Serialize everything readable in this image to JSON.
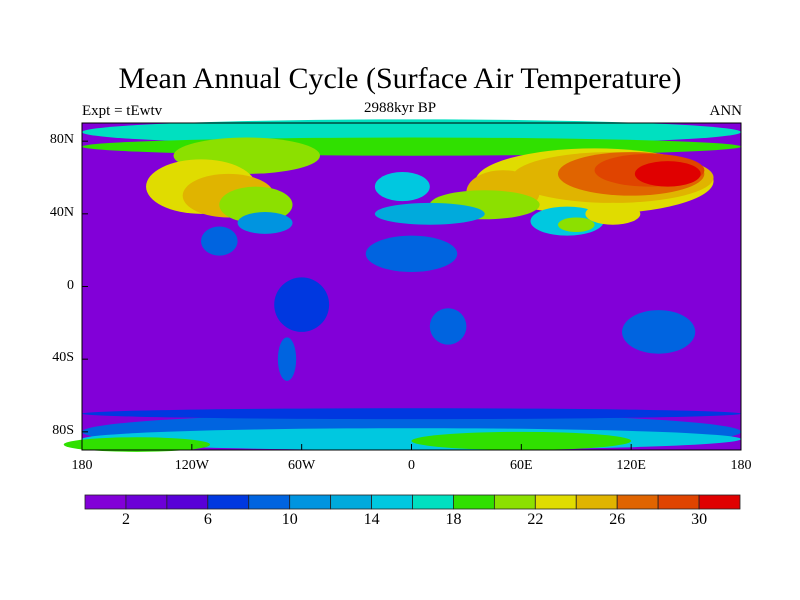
{
  "title": "Mean Annual Cycle (Surface Air Temperature)",
  "left_string": "Expt = tEwtv",
  "center_string": "2988kyr BP",
  "right_string": "ANN",
  "chart_data": {
    "type": "heatmap",
    "title": "Mean Annual Cycle (Surface Air Temperature)",
    "projection": "cylindrical equidistant",
    "lon_range": [
      -180,
      180
    ],
    "lat_range": [
      -90,
      90
    ],
    "x_ticks": [
      {
        "value": -180,
        "label": "180"
      },
      {
        "value": -120,
        "label": "120W"
      },
      {
        "value": -60,
        "label": "60W"
      },
      {
        "value": 0,
        "label": "0"
      },
      {
        "value": 60,
        "label": "60E"
      },
      {
        "value": 120,
        "label": "120E"
      },
      {
        "value": 180,
        "label": "180"
      }
    ],
    "y_ticks": [
      {
        "value": 80,
        "label": "80N"
      },
      {
        "value": 40,
        "label": "40N"
      },
      {
        "value": 0,
        "label": "0"
      },
      {
        "value": -40,
        "label": "40S"
      },
      {
        "value": -80,
        "label": "80S"
      }
    ],
    "colorbar": {
      "levels": [
        2,
        4,
        6,
        8,
        10,
        12,
        14,
        16,
        18,
        20,
        22,
        24,
        26,
        28,
        30
      ],
      "labels": [
        "2",
        "6",
        "10",
        "14",
        "18",
        "22",
        "26",
        "30"
      ],
      "colors": [
        "#8200d8",
        "#6c00d8",
        "#5800d8",
        "#0038e0",
        "#0064e0",
        "#0094e0",
        "#00aadc",
        "#00c8e0",
        "#00e0c0",
        "#30e000",
        "#8ce000",
        "#e0dc00",
        "#e0b400",
        "#e06400",
        "#e04400",
        "#e00000"
      ]
    }
  }
}
